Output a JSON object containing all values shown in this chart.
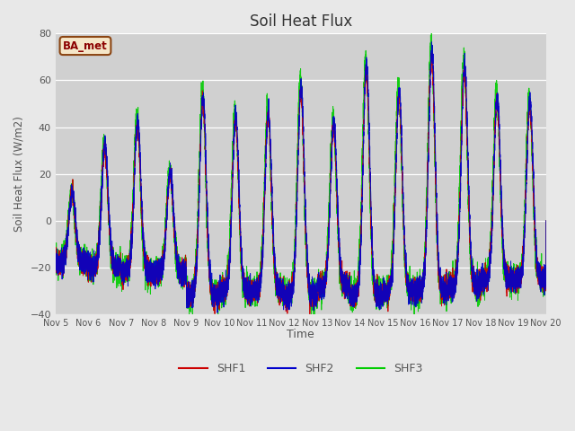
{
  "title": "Soil Heat Flux",
  "ylabel": "Soil Heat Flux (W/m2)",
  "xlabel": "Time",
  "legend_label": "BA_met",
  "series_labels": [
    "SHF1",
    "SHF2",
    "SHF3"
  ],
  "series_colors": [
    "#cc0000",
    "#0000cc",
    "#00cc00"
  ],
  "ylim": [
    -40,
    80
  ],
  "background_color": "#e8e8e8",
  "plot_bg_color": "#d0d0d0",
  "legend_box_color": "#f5e6c8",
  "legend_box_edge": "#8b4513",
  "legend_text_color": "#8b0000",
  "tick_label_color": "#555555",
  "title_color": "#333333",
  "yticks": [
    -40,
    -20,
    0,
    20,
    40,
    60,
    80
  ],
  "day_peaks": [
    12,
    31,
    41,
    20,
    51,
    43,
    44,
    55,
    40,
    64,
    53,
    70,
    64,
    51,
    49
  ],
  "night_base": [
    -18,
    -20,
    -22,
    -22,
    -32,
    -30,
    -30,
    -32,
    -28,
    -32,
    -30,
    -30,
    -28,
    -25,
    -25
  ],
  "num_points": 7200
}
